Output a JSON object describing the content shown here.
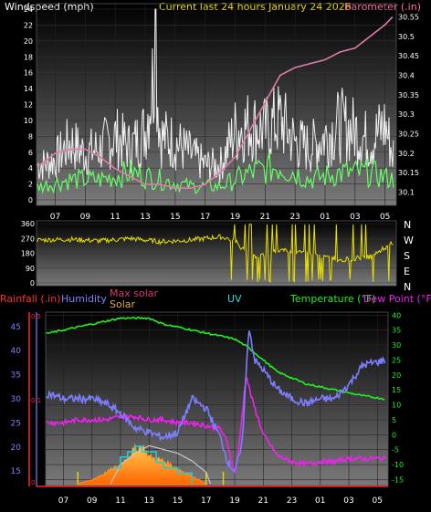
{
  "colors": {
    "background": "#000000",
    "plot_top": "#000000",
    "plot_bottom": "#707070",
    "axis": "#ffffff",
    "wind_gust": "#f0f0f0",
    "wind_avg": "#66ff66",
    "barometer": "#e07aa8",
    "direction": "#e8e000",
    "humidity": "#7d7dff",
    "temperature": "#22ee22",
    "dewpoint": "#ee22ee",
    "solar": "#ff9a20",
    "max_solar": "#c8c8c8",
    "uv": "#22cccc",
    "rainfall": "#ff2222",
    "tick_text": "#ffffff",
    "label_rain": "#ff3030",
    "label_humidity": "#8080ff",
    "label_maxsolar": "#dd3377",
    "label_solar": "#ddaa44",
    "label_uv": "#33dddd",
    "label_temp": "#22ee22",
    "label_dew": "#ee22ee",
    "label_title": "#f0e000",
    "label_baro": "#ff70a0"
  },
  "chart_data": [
    {
      "type": "line",
      "panel": "wind-barometer",
      "title": "Current last 24 hours January 24 2026",
      "left_axis_label": "Windspeed (mph)",
      "right_axis_label": "Barometer (.in)",
      "x_ticks": [
        "07",
        "09",
        "11",
        "13",
        "15",
        "17",
        "19",
        "21",
        "23",
        "01",
        "03",
        "05"
      ],
      "y_left_ticks": [
        0,
        2,
        4,
        6,
        8,
        10,
        12,
        14,
        16,
        18,
        20,
        22,
        24
      ],
      "y_left_lim": [
        0,
        24
      ],
      "y_right_ticks": [
        "30.1",
        "30.15",
        "30.2",
        "30.25",
        "30.3",
        "30.35",
        "30.4",
        "30.45",
        "30.5",
        "30.55"
      ],
      "y_right_lim": [
        30.08,
        30.57
      ],
      "series": [
        {
          "role": "gust",
          "x": [
            6,
            7,
            8,
            9,
            10,
            11,
            12,
            13,
            13.7,
            14,
            15,
            16,
            17,
            18,
            19,
            20,
            21,
            22,
            23,
            24,
            25,
            26,
            27,
            28,
            29,
            29.5
          ],
          "y": [
            6,
            7,
            10,
            8,
            9,
            11,
            9,
            12,
            24,
            11,
            10,
            8,
            6,
            6,
            12,
            13,
            12,
            14,
            10,
            9,
            11,
            13,
            12,
            10,
            13,
            8
          ]
        },
        {
          "role": "average",
          "x": [
            6,
            8,
            10,
            12,
            14,
            16,
            18,
            20,
            22,
            24,
            26,
            28,
            29.5
          ],
          "y": [
            2,
            3,
            3,
            4,
            3,
            2,
            2,
            4,
            5,
            3,
            4,
            4,
            3
          ]
        },
        {
          "role": "barometer",
          "x": [
            6,
            7,
            8,
            9,
            10,
            11,
            12,
            13,
            14,
            15,
            16,
            17,
            18,
            19,
            20,
            21,
            22,
            23,
            24,
            25,
            26,
            27,
            28,
            29,
            29.5
          ],
          "y": [
            30.17,
            30.2,
            30.21,
            30.21,
            30.19,
            30.16,
            30.14,
            30.12,
            30.12,
            30.11,
            30.11,
            30.12,
            30.15,
            30.19,
            30.26,
            30.33,
            30.4,
            30.42,
            30.43,
            30.44,
            30.46,
            30.47,
            30.5,
            30.53,
            30.55
          ]
        }
      ]
    },
    {
      "type": "line",
      "panel": "wind-direction",
      "right_axis_label": [
        "N",
        "W",
        "S",
        "E",
        "N"
      ],
      "y_ticks": [
        0,
        90,
        180,
        270,
        360
      ],
      "y_lim": [
        0,
        360
      ],
      "series": [
        {
          "role": "direction",
          "x": [
            6,
            8,
            10,
            12,
            14,
            16,
            18,
            19,
            20,
            22,
            24,
            26,
            28,
            29.5
          ],
          "y": [
            260,
            265,
            255,
            270,
            250,
            260,
            280,
            260,
            150,
            200,
            180,
            140,
            160,
            240
          ]
        }
      ]
    },
    {
      "type": "line",
      "panel": "weather",
      "labels": {
        "rainfall": "Rainfall (.in)",
        "humidity": "Humidity",
        "max_solar": "Max solar",
        "solar": "Solar",
        "uv": "UV",
        "temperature": "Temperature (°F)",
        "dewpoint": "Dew Point (°F)"
      },
      "x_ticks": [
        "07",
        "09",
        "11",
        "13",
        "15",
        "17",
        "19",
        "21",
        "23",
        "01",
        "03",
        "05"
      ],
      "humidity_ticks": [
        15,
        20,
        25,
        30,
        35,
        40,
        45
      ],
      "rain_ticks": [
        "0.5",
        "0.1",
        "0"
      ],
      "temp_ticks": [
        40,
        35,
        30,
        25,
        20,
        15,
        10,
        5,
        0,
        -5,
        -10,
        -15
      ],
      "humidity_lim": [
        12,
        48
      ],
      "temp_lim": [
        -17,
        41
      ],
      "series": [
        {
          "role": "temperature",
          "x": [
            6,
            7,
            8,
            9,
            10,
            11,
            12,
            13,
            14,
            15,
            16,
            17,
            18,
            19,
            20,
            21,
            22,
            23,
            24,
            25,
            26,
            27,
            28,
            29.5
          ],
          "y": [
            34,
            35,
            36,
            37,
            38,
            39,
            39,
            39,
            37,
            36,
            35,
            34,
            33,
            32,
            29,
            25,
            21,
            19,
            17,
            16,
            15,
            14,
            13,
            12
          ]
        },
        {
          "role": "dewpoint",
          "x": [
            6,
            7,
            8,
            9,
            10,
            11,
            12,
            13,
            14,
            15,
            16,
            17,
            18,
            18.5,
            19,
            19.3,
            19.8,
            20.2,
            21,
            22,
            23,
            24,
            25,
            26,
            27,
            28,
            29.5
          ],
          "y": [
            4,
            4,
            5,
            5,
            5,
            6,
            6,
            5,
            5,
            4,
            4,
            3,
            2,
            -3,
            -13,
            -4,
            20,
            12,
            0,
            -7,
            -9,
            -10,
            -9,
            -9,
            -8,
            -8,
            -8
          ]
        },
        {
          "role": "humidity",
          "x": [
            6,
            7,
            8,
            9,
            10,
            11,
            12,
            13,
            14,
            15,
            16,
            17,
            18,
            18.5,
            19,
            19.5,
            20,
            20.4,
            21,
            22,
            23,
            24,
            25,
            26,
            27,
            28,
            29.5
          ],
          "y": [
            31,
            30,
            30,
            30,
            29,
            27,
            24,
            23,
            22,
            23,
            30,
            28,
            22,
            17,
            15,
            20,
            45,
            38,
            36,
            32,
            30,
            29,
            30,
            30,
            33,
            37,
            38
          ]
        },
        {
          "role": "max_solar",
          "x": [
            10.3,
            11,
            12,
            12.5,
            13,
            14,
            15,
            16,
            17,
            17.3
          ],
          "y": [
            0,
            5,
            8,
            9,
            10,
            9,
            8,
            6,
            3,
            0
          ]
        },
        {
          "role": "solar",
          "x": [
            8,
            9,
            10,
            11,
            11.5,
            12,
            12.5,
            13,
            14,
            15,
            16,
            17
          ],
          "y": [
            0,
            1,
            3,
            5,
            7,
            9,
            10,
            7,
            6,
            4,
            2,
            0
          ]
        },
        {
          "role": "uv",
          "x": [
            10.5,
            11,
            11.5,
            12,
            12.5,
            13,
            13.5,
            14,
            15,
            16
          ],
          "y": [
            3,
            5,
            6,
            7,
            6,
            6,
            4,
            3,
            2,
            0
          ]
        }
      ]
    }
  ]
}
